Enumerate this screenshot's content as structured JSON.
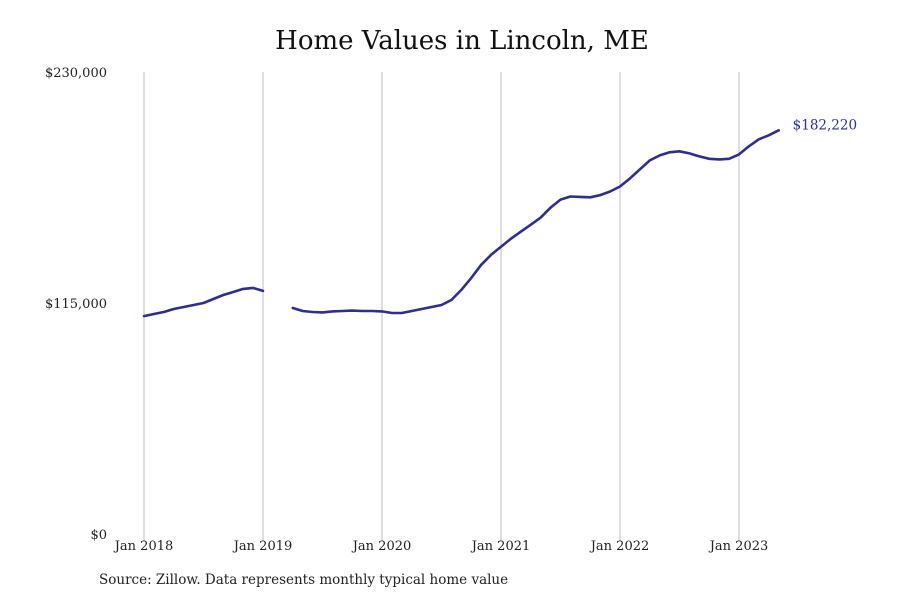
{
  "chart_data": {
    "type": "line",
    "title": "Home Values in Lincoln, ME",
    "source_note": "Source: Zillow. Data represents monthly typical home value",
    "ylim": [
      0,
      230000
    ],
    "y_ticks": [
      "$230,000",
      "$115,000",
      "$0"
    ],
    "y_tick_values": [
      230000,
      115000,
      0
    ],
    "x_range": [
      "2018-01",
      "2023-09"
    ],
    "x_ticks": [
      "Jan 2018",
      "Jan 2019",
      "Jan 2020",
      "Jan 2021",
      "Jan 2022",
      "Jan 2023"
    ],
    "x_tick_values": [
      "2018-01",
      "2019-01",
      "2020-01",
      "2021-01",
      "2022-01",
      "2023-01"
    ],
    "grid": "vertical at year ticks",
    "line_color": "#2e2e91",
    "end_label": "$182,220",
    "series": [
      {
        "points": [
          [
            "2018-01",
            108500
          ],
          [
            "2018-02",
            109500
          ],
          [
            "2018-03",
            110500
          ],
          [
            "2018-04",
            112000
          ],
          [
            "2018-05",
            113000
          ],
          [
            "2018-06",
            114000
          ],
          [
            "2018-07",
            115000
          ],
          [
            "2018-08",
            117000
          ],
          [
            "2018-09",
            119000
          ],
          [
            "2018-10",
            120500
          ],
          [
            "2018-11",
            122000
          ],
          [
            "2018-12",
            122500
          ],
          [
            "2019-01",
            121000
          ],
          null,
          [
            "2019-04",
            112500
          ],
          [
            "2019-05",
            111000
          ],
          [
            "2019-06",
            110500
          ],
          [
            "2019-07",
            110300
          ],
          [
            "2019-08",
            110800
          ],
          [
            "2019-09",
            111000
          ],
          [
            "2019-10",
            111200
          ],
          [
            "2019-11",
            111000
          ],
          [
            "2019-12",
            111000
          ],
          [
            "2020-01",
            110800
          ],
          [
            "2020-02",
            110000
          ],
          [
            "2020-03",
            110000
          ],
          [
            "2020-04",
            111000
          ],
          [
            "2020-05",
            112000
          ],
          [
            "2020-06",
            113000
          ],
          [
            "2020-07",
            114000
          ],
          [
            "2020-08",
            116500
          ],
          [
            "2020-09",
            121500
          ],
          [
            "2020-10",
            127500
          ],
          [
            "2020-11",
            134000
          ],
          [
            "2020-12",
            139000
          ],
          [
            "2021-01",
            143000
          ],
          [
            "2021-02",
            147000
          ],
          [
            "2021-03",
            150500
          ],
          [
            "2021-04",
            154000
          ],
          [
            "2021-05",
            157500
          ],
          [
            "2021-06",
            162500
          ],
          [
            "2021-07",
            166500
          ],
          [
            "2021-08",
            168000
          ],
          [
            "2021-09",
            167800
          ],
          [
            "2021-10",
            167600
          ],
          [
            "2021-11",
            168700
          ],
          [
            "2021-12",
            170500
          ],
          [
            "2022-01",
            173000
          ],
          [
            "2022-02",
            177000
          ],
          [
            "2022-03",
            181500
          ],
          [
            "2022-04",
            186000
          ],
          [
            "2022-05",
            188500
          ],
          [
            "2022-06",
            190000
          ],
          [
            "2022-07",
            190500
          ],
          [
            "2022-08",
            189500
          ],
          [
            "2022-09",
            188000
          ],
          [
            "2022-10",
            186800
          ],
          [
            "2022-11",
            186500
          ],
          [
            "2022-12",
            186800
          ],
          [
            "2023-01",
            189000
          ],
          [
            "2023-02",
            193000
          ],
          [
            "2023-03",
            196500
          ],
          [
            "2023-04",
            198500
          ],
          [
            "2023-05",
            201000
          ]
        ]
      }
    ]
  }
}
